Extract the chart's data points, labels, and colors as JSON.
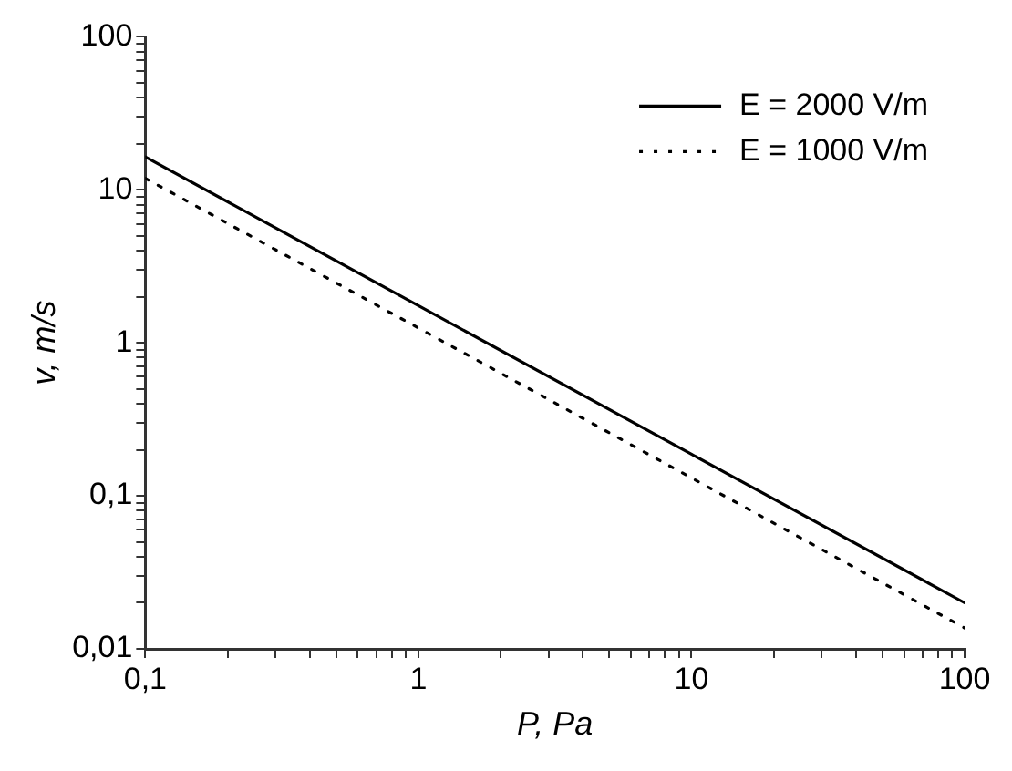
{
  "chart_data": {
    "type": "line",
    "xlabel": "P, Pa",
    "ylabel": "v, m/s",
    "log": "xy",
    "marker": "none",
    "grid": false,
    "legend": "top right",
    "x": [
      0.1,
      1,
      10,
      100
    ],
    "series": [
      {
        "name": "E = 2000 V/m",
        "color": "#000000",
        "line_style": "solid",
        "values": [
          16.4,
          1.75,
          0.187,
          0.02
        ]
      },
      {
        "name": "E = 1000 V/m",
        "color": "#000000",
        "line_style": "dotted",
        "values": [
          11.9,
          1.25,
          0.131,
          0.0137
        ]
      }
    ],
    "xlim": [
      0.1,
      100
    ],
    "xticks": [
      {
        "value": 0.1,
        "label": "0,1"
      },
      {
        "value": 0.2,
        "label": null
      },
      {
        "value": 0.3,
        "label": null
      },
      {
        "value": 0.4,
        "label": null
      },
      {
        "value": 0.5,
        "label": null
      },
      {
        "value": 0.6,
        "label": null
      },
      {
        "value": 0.7,
        "label": null
      },
      {
        "value": 0.8,
        "label": null
      },
      {
        "value": 0.9,
        "label": null
      },
      1,
      {
        "value": 2,
        "label": null
      },
      {
        "value": 3,
        "label": null
      },
      {
        "value": 4,
        "label": null
      },
      {
        "value": 5,
        "label": null
      },
      {
        "value": 6,
        "label": null
      },
      {
        "value": 7,
        "label": null
      },
      {
        "value": 8,
        "label": null
      },
      {
        "value": 9,
        "label": null
      },
      10,
      {
        "value": 20,
        "label": null
      },
      {
        "value": 30,
        "label": null
      },
      {
        "value": 40,
        "label": null
      },
      {
        "value": 50,
        "label": null
      },
      {
        "value": 60,
        "label": null
      },
      {
        "value": 70,
        "label": null
      },
      {
        "value": 80,
        "label": null
      },
      {
        "value": 90,
        "label": null
      },
      100
    ],
    "ylim": [
      0.01,
      100
    ],
    "yticks": [
      {
        "value": 0.01,
        "label": "0,01"
      },
      {
        "value": 0.02,
        "label": null
      },
      {
        "value": 0.03,
        "label": null
      },
      {
        "value": 0.04,
        "label": null
      },
      {
        "value": 0.05,
        "label": null
      },
      {
        "value": 0.06,
        "label": null
      },
      {
        "value": 0.07,
        "label": null
      },
      {
        "value": 0.08,
        "label": null
      },
      {
        "value": 0.09,
        "label": null
      },
      {
        "value": 0.1,
        "label": "0,1"
      },
      {
        "value": 0.2,
        "label": null
      },
      {
        "value": 0.3,
        "label": null
      },
      {
        "value": 0.4,
        "label": null
      },
      {
        "value": 0.5,
        "label": null
      },
      {
        "value": 0.6,
        "label": null
      },
      {
        "value": 0.7,
        "label": null
      },
      {
        "value": 0.8,
        "label": null
      },
      {
        "value": 0.9,
        "label": null
      },
      1,
      {
        "value": 2,
        "label": null
      },
      {
        "value": 3,
        "label": null
      },
      {
        "value": 4,
        "label": null
      },
      {
        "value": 5,
        "label": null
      },
      {
        "value": 6,
        "label": null
      },
      {
        "value": 7,
        "label": null
      },
      {
        "value": 8,
        "label": null
      },
      {
        "value": 9,
        "label": null
      },
      10,
      {
        "value": 20,
        "label": null
      },
      {
        "value": 30,
        "label": null
      },
      {
        "value": 40,
        "label": null
      },
      {
        "value": 50,
        "label": null
      },
      {
        "value": 60,
        "label": null
      },
      {
        "value": 70,
        "label": null
      },
      {
        "value": 80,
        "label": null
      },
      {
        "value": 90,
        "label": null
      },
      100
    ]
  }
}
